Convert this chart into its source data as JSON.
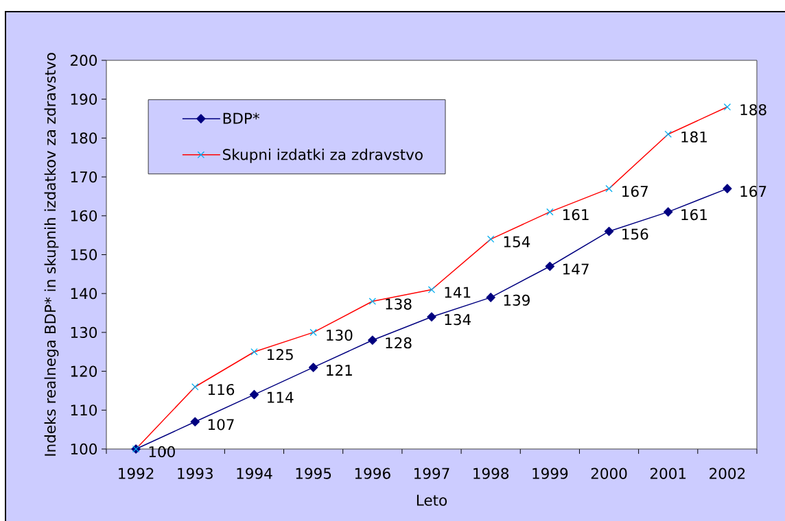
{
  "chart_data": {
    "type": "line",
    "xlabel": "Leto",
    "ylabel": "Indeks realnega BDP* in skupnih izdatkov za zdravstvo",
    "categories": [
      "1992",
      "1993",
      "1994",
      "1995",
      "1996",
      "1997",
      "1998",
      "1999",
      "2000",
      "2001",
      "2002"
    ],
    "series": [
      {
        "name": "BDP*",
        "color": "#000080",
        "marker": "diamond",
        "values": [
          100,
          107,
          114,
          121,
          128,
          134,
          139,
          147,
          156,
          161,
          167
        ],
        "value_labels": [
          "100",
          "107",
          "114",
          "121",
          "128",
          "134",
          "139",
          "147",
          "156",
          "161",
          "167"
        ]
      },
      {
        "name": "Skupni izdatki za zdravstvo",
        "color": "#ff0000",
        "marker": "cross",
        "values": [
          100,
          116,
          125,
          130,
          138,
          141,
          154,
          161,
          167,
          181,
          188
        ],
        "value_labels": [
          null,
          "116",
          "125",
          "130",
          "138",
          "141",
          "154",
          "161",
          "167",
          "181",
          "188"
        ]
      }
    ],
    "ylim": [
      100,
      200
    ],
    "yticks": [
      100,
      110,
      120,
      130,
      140,
      150,
      160,
      170,
      180,
      190,
      200
    ],
    "legend": "top left",
    "line_style": "solid"
  }
}
